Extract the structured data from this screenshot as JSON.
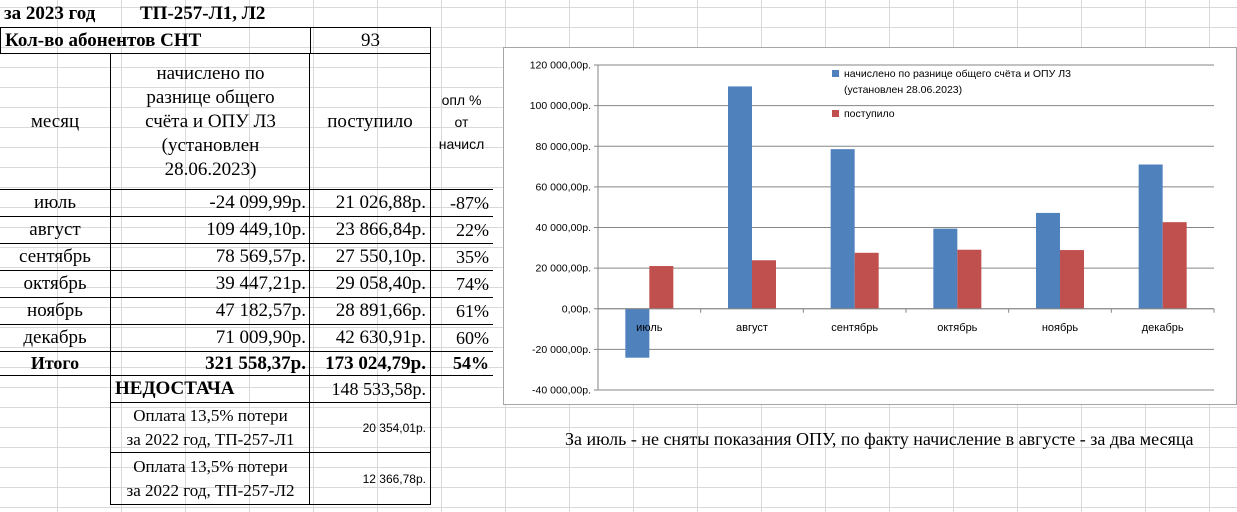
{
  "header": {
    "year_label": "за 2023 год",
    "object_label": "ТП-257-Л1, Л2",
    "subscribers_label": "Кол-во абонентов СНТ",
    "subscribers_count": "93"
  },
  "table": {
    "col_month": "месяц",
    "col_accrued": "начислено по разнице общего счёта и  ОПУ Л3 (установлен 28.06.2023)",
    "col_received": "поступило",
    "col_percent": "опл % от начисл",
    "rows": [
      {
        "month": "июль",
        "accrued": "-24 099,99р.",
        "received": "21 026,88р.",
        "percent": "-87%"
      },
      {
        "month": "август",
        "accrued": "109 449,10р.",
        "received": "23 866,84р.",
        "percent": "22%"
      },
      {
        "month": "сентябрь",
        "accrued": "78 569,57р.",
        "received": "27 550,10р.",
        "percent": "35%"
      },
      {
        "month": "октябрь",
        "accrued": "39 447,21р.",
        "received": "29 058,40р.",
        "percent": "74%"
      },
      {
        "month": "ноябрь",
        "accrued": "47 182,57р.",
        "received": "28 891,66р.",
        "percent": "61%"
      },
      {
        "month": "декабрь",
        "accrued": "71 009,90р.",
        "received": "42 630,91р.",
        "percent": "60%"
      }
    ],
    "total_label": "Итого",
    "total_accrued": "321 558,37р.",
    "total_received": "173 024,79р.",
    "total_percent": "54%",
    "shortage_label": "НЕДОСТАЧА",
    "shortage_value": "148 533,58р.",
    "loss1_line1": "Оплата 13,5% потери",
    "loss1_line2": "за 2022 год, ТП-257-Л1",
    "loss1_value": "20 354,01р.",
    "loss2_line1": "Оплата 13,5% потери",
    "loss2_line2": "за 2022 год, ТП-257-Л2",
    "loss2_value": "12 366,78р."
  },
  "note": "За июль  - не сняты показания ОПУ, по факту начисление в августе - за два месяца",
  "chart_data": {
    "type": "bar",
    "categories": [
      "июль",
      "август",
      "сентябрь",
      "октябрь",
      "ноябрь",
      "декабрь"
    ],
    "series": [
      {
        "name": "начислено по разнице общего счёта и  ОПУ Л3 (установлен 28.06.2023)",
        "values": [
          -24099.99,
          109449.1,
          78569.57,
          39447.21,
          47182.57,
          71009.9
        ],
        "color": "#4f81bd"
      },
      {
        "name": "поступило",
        "values": [
          21026.88,
          23866.84,
          27550.1,
          29058.4,
          28891.66,
          42630.91
        ],
        "color": "#c0504d"
      }
    ],
    "legend_lines": [
      "начислено по разнице общего счёта и  ОПУ Л3",
      "(установлен 28.06.2023)",
      "поступило"
    ],
    "ylim": [
      -40000,
      120000
    ],
    "yticks": [
      -40000,
      -20000,
      0,
      20000,
      40000,
      60000,
      80000,
      100000,
      120000
    ],
    "ytick_labels": [
      "-40 000,00р.",
      "-20 000,00р.",
      "0,00р.",
      "20 000,00р.",
      "40 000,00р.",
      "60 000,00р.",
      "80 000,00р.",
      "100 000,00р.",
      "120 000,00р."
    ],
    "grid": true,
    "legend_position": "top-right"
  }
}
